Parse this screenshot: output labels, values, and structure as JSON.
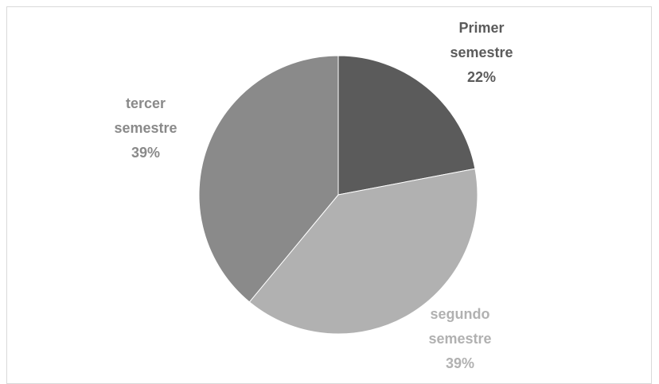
{
  "chart_data": {
    "type": "pie",
    "categories": [
      "Primer semestre",
      "segundo semestre",
      "tercer semestre"
    ],
    "values": [
      22,
      39,
      39
    ],
    "value_labels": [
      "22%",
      "39%",
      "39%"
    ],
    "colors": [
      "#5b5b5b",
      "#b1b1b1",
      "#8a8a8a"
    ]
  }
}
